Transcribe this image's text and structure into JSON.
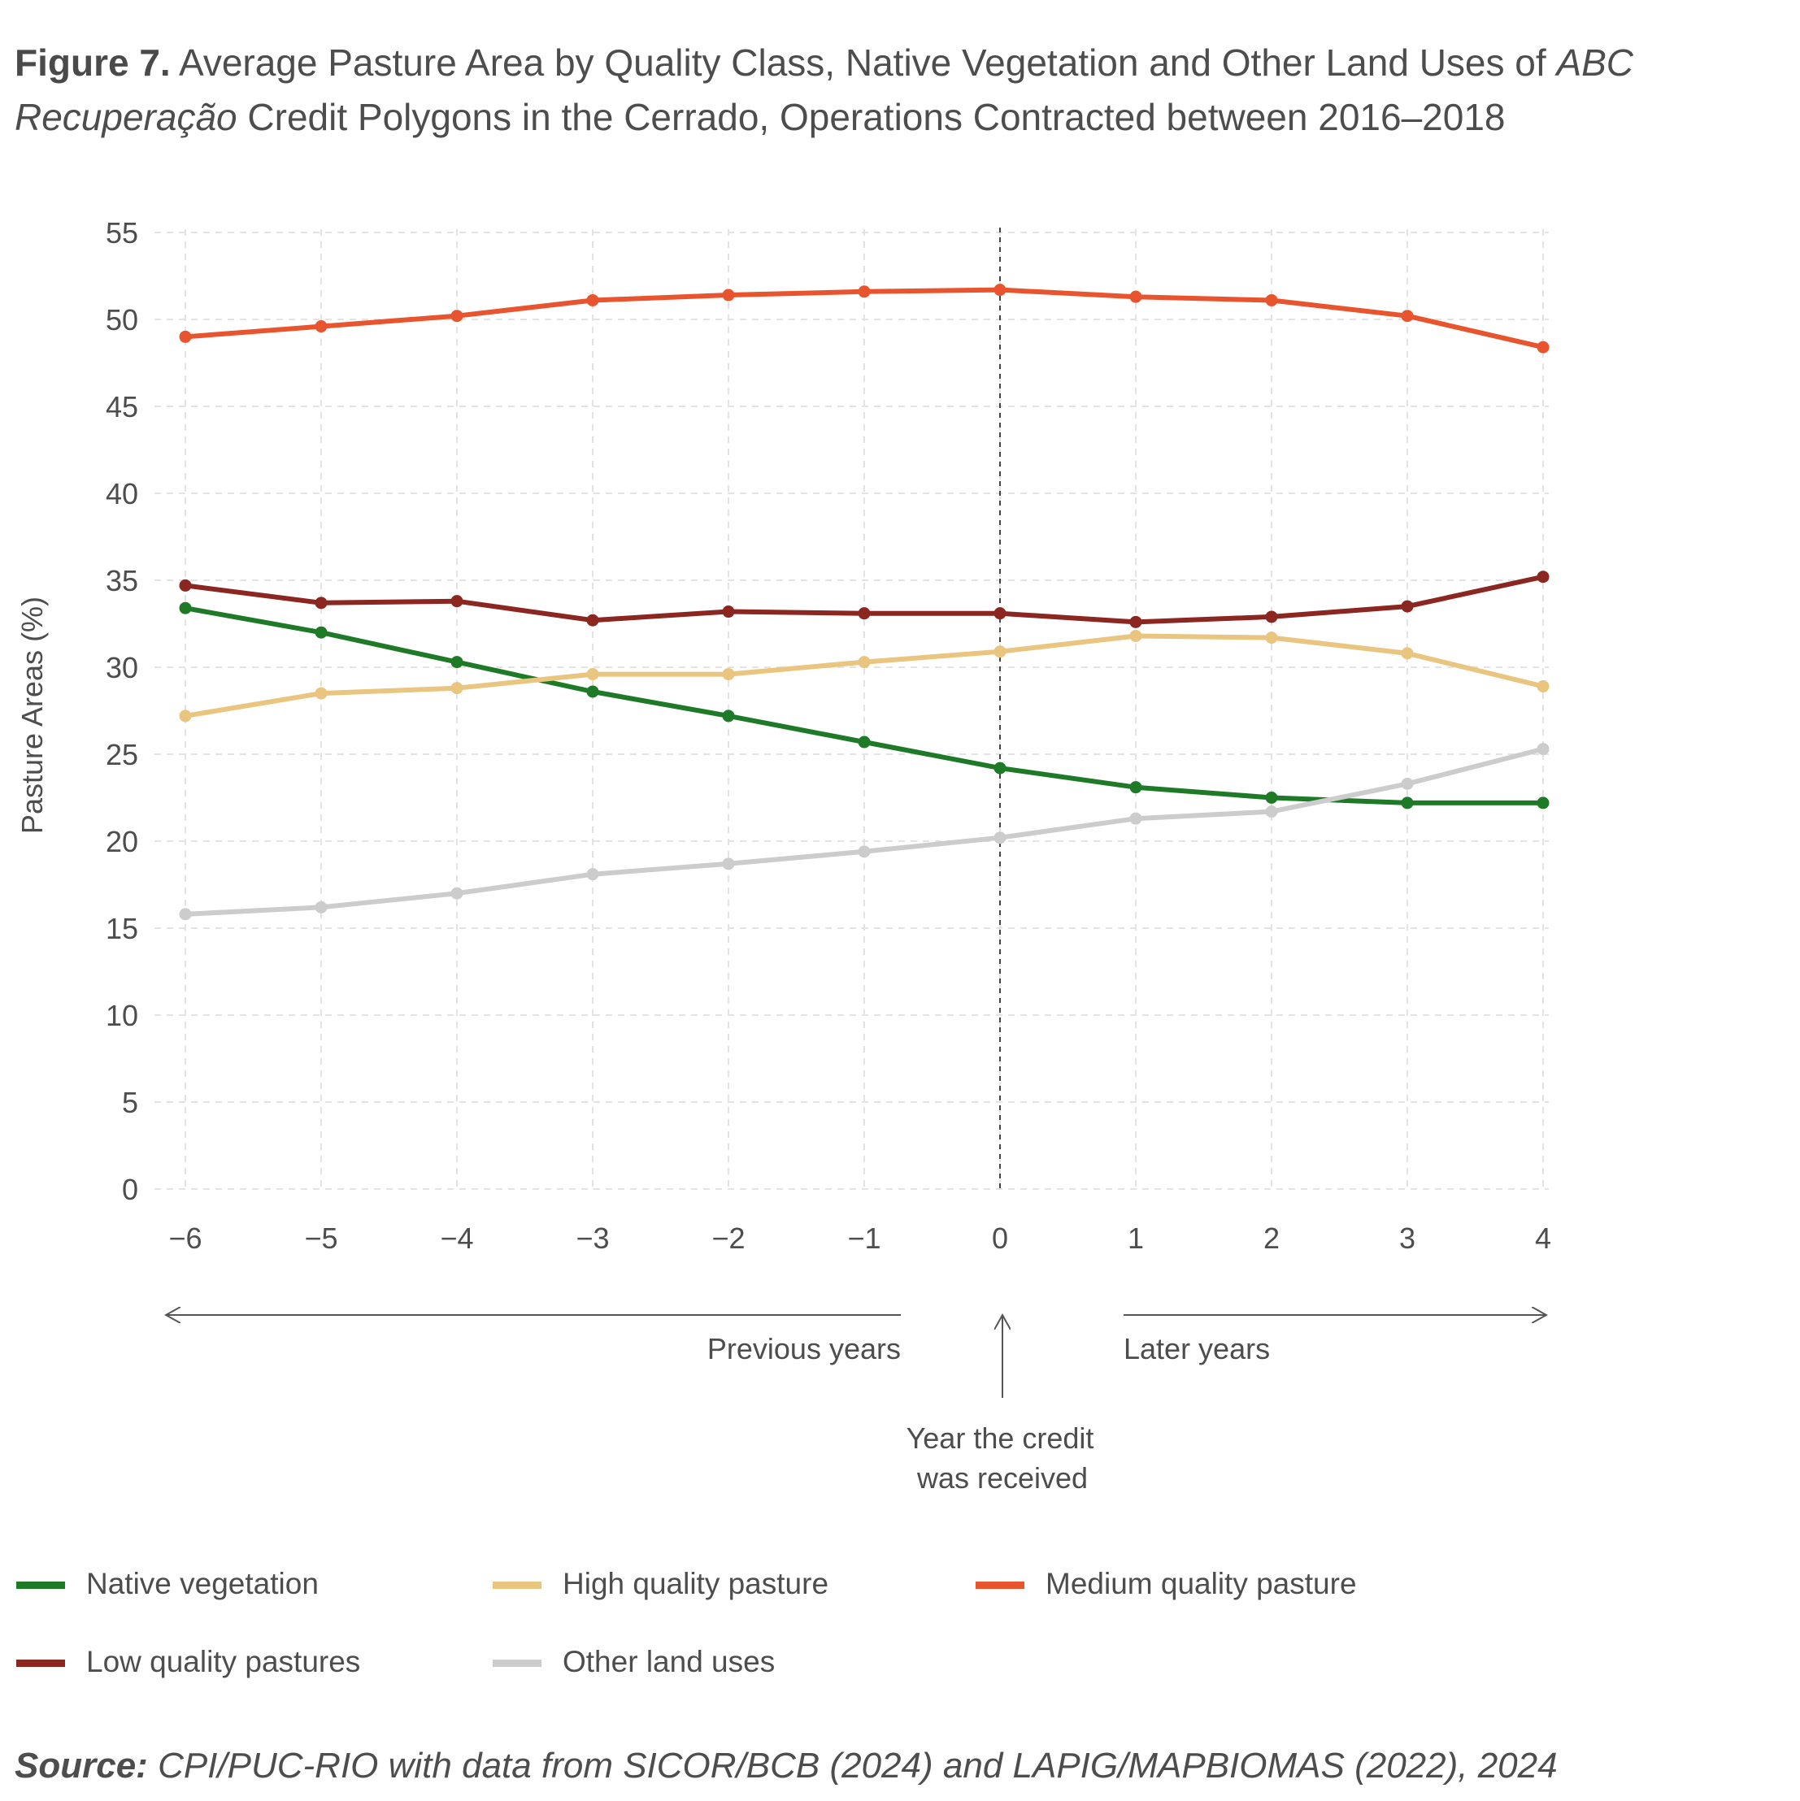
{
  "title": {
    "bold": "Figure 7.",
    "text_1": "Average Pasture Area by Quality Class, Native Vegetation and Other Land Uses of",
    "italic_1": "ABC Recuperação",
    "text_2": "Credit Polygons in the Cerrado, Operations Contracted between 2016–2018"
  },
  "annotations": {
    "previous": "Previous years",
    "later": "Later years",
    "credit_line1": "Year the credit",
    "credit_line2": "was received"
  },
  "source": {
    "label": "Source:",
    "text": "CPI/PUC-RIO with data from SICOR/BCB (2024) and LAPIG/MAPBIOMAS (2022), 2024"
  },
  "chart_data": {
    "type": "line",
    "ylabel": "Pasture Areas (%)",
    "xlabel": "",
    "ylim": [
      0,
      55
    ],
    "yticks": [
      "0",
      "5",
      "10",
      "15",
      "20",
      "25",
      "30",
      "35",
      "40",
      "45",
      "50",
      "55"
    ],
    "x": [
      -6,
      -5,
      -4,
      -3,
      -2,
      -1,
      0,
      1,
      2,
      3,
      4
    ],
    "xtick_labels": [
      "−6",
      "−5",
      "−4",
      "−3",
      "−2",
      "−1",
      "0",
      "1",
      "2",
      "3",
      "4"
    ],
    "grid": true,
    "reference_line_x": 0,
    "legend_position": "bottom",
    "series": [
      {
        "name": "Native vegetation",
        "color": "#1e7a26",
        "values": [
          33.4,
          32.0,
          30.3,
          28.6,
          27.2,
          25.7,
          24.2,
          23.1,
          22.5,
          22.2,
          22.2
        ]
      },
      {
        "name": "High quality pasture",
        "color": "#e9c57f",
        "values": [
          27.2,
          28.5,
          28.8,
          29.6,
          29.6,
          30.3,
          30.9,
          31.8,
          31.7,
          30.8,
          28.9
        ]
      },
      {
        "name": "Medium quality pasture",
        "color": "#e8542e",
        "values": [
          49.0,
          49.6,
          50.2,
          51.1,
          51.4,
          51.6,
          51.7,
          51.3,
          51.1,
          50.2,
          48.4
        ]
      },
      {
        "name": "Low quality pastures",
        "color": "#8b2620",
        "values": [
          34.7,
          33.7,
          33.8,
          32.7,
          33.2,
          33.1,
          33.1,
          32.6,
          32.9,
          33.5,
          35.2
        ]
      },
      {
        "name": "Other land uses",
        "color": "#cccccc",
        "values": [
          15.8,
          16.2,
          17.0,
          18.1,
          18.7,
          19.4,
          20.2,
          21.3,
          21.7,
          23.3,
          25.3
        ]
      }
    ]
  }
}
